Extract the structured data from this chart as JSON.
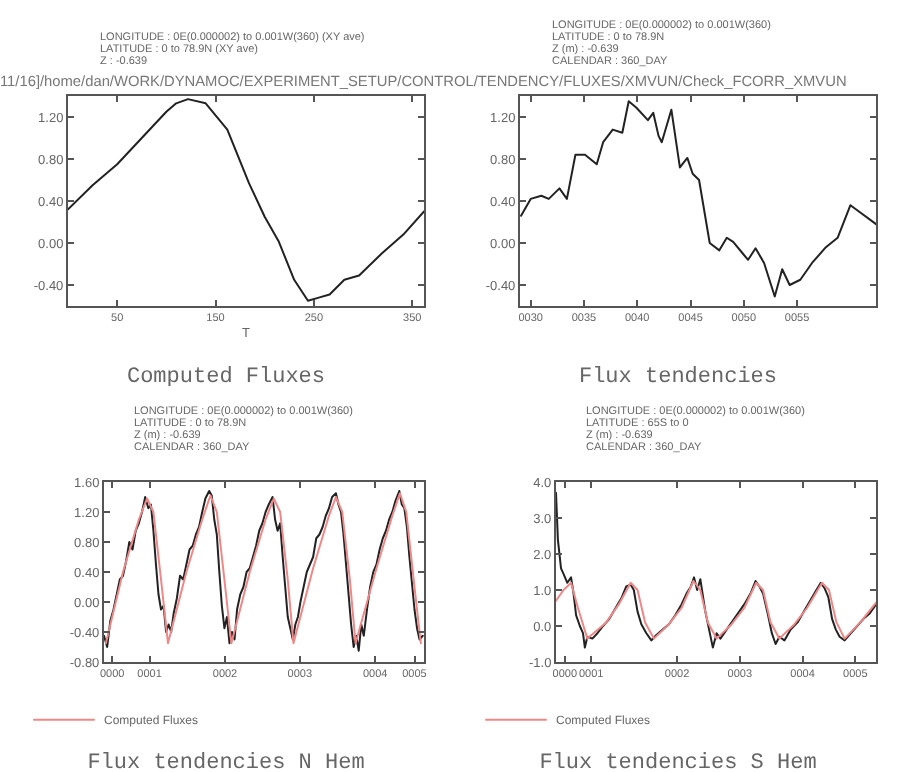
{
  "chart_data": [
    {
      "type": "line",
      "title": "Computed Fluxes",
      "subtitle": "11/16]/home/dan/WORK/DYNAMOC/EXPERIMENT_SETUP/CONTROL/TENDENCY/FLUXES/XMVUN/Check_FCORR_XMVUN",
      "xlabel": "T",
      "annotations": [
        "LONGITUDE : 0E(0.000002) to 0.001W(360) (XY ave)",
        "LATITUDE : 0 to 78.9N (XY ave)",
        "Z : -0.639"
      ],
      "xlim": [
        0,
        362
      ],
      "xticks": [
        50,
        150,
        250,
        350
      ],
      "ylim": [
        -0.6,
        1.4
      ],
      "yticks": [
        {
          "value": -0.4,
          "label": "-0.40"
        },
        {
          "value": 0,
          "label": "0.00"
        },
        {
          "value": 0.4,
          "label": "0.40"
        },
        {
          "value": 0.8,
          "label": "0.80"
        },
        {
          "value": 1.2,
          "label": "1.20"
        }
      ],
      "series": [
        {
          "color": "#222222",
          "x": [
            0,
            25,
            50,
            75,
            100,
            110,
            122,
            140,
            162,
            184,
            200,
            214,
            230,
            244,
            255,
            266,
            281,
            296,
            319,
            341,
            362
          ],
          "values": [
            0.32,
            0.55,
            0.75,
            1.0,
            1.25,
            1.33,
            1.37,
            1.33,
            1.08,
            0.57,
            0.25,
            0.02,
            -0.35,
            -0.55,
            -0.52,
            -0.49,
            -0.35,
            -0.31,
            -0.1,
            0.08,
            0.3
          ]
        }
      ]
    },
    {
      "type": "line",
      "title": "Flux tendencies",
      "annotations": [
        "LONGITUDE : 0E(0.000002) to 0.001W(360)",
        "LATITUDE : 0 to 78.9N",
        "Z (m) : -0.639",
        "CALENDAR : 360_DAY"
      ],
      "xlim": [
        29,
        62.4
      ],
      "xticks": [
        {
          "value": 30,
          "label": "0030"
        },
        {
          "value": 35,
          "label": "0035"
        },
        {
          "value": 40,
          "label": "0040"
        },
        {
          "value": 45,
          "label": "0045"
        },
        {
          "value": 50,
          "label": "0050"
        },
        {
          "value": 55,
          "label": "0055"
        }
      ],
      "ylim": [
        -0.6,
        1.4
      ],
      "yticks": [
        {
          "value": -0.4,
          "label": "-0.40"
        },
        {
          "value": 0,
          "label": "0.00"
        },
        {
          "value": 0.4,
          "label": "0.40"
        },
        {
          "value": 0.8,
          "label": "0.80"
        },
        {
          "value": 1.2,
          "label": "1.20"
        }
      ],
      "series": [
        {
          "color": "#222222",
          "x": [
            29.1,
            30,
            31,
            31.7,
            32.7,
            33.4,
            34.2,
            35.1,
            36.2,
            36.8,
            37.7,
            38.6,
            39.2,
            39.9,
            41,
            41.5,
            42,
            42.3,
            43.2,
            44,
            44.7,
            45.2,
            45.8,
            46.8,
            47.7,
            48.4,
            49,
            49.9,
            50.4,
            51.1,
            51.9,
            52.9,
            53.6,
            54.3,
            55.3,
            56.4,
            57.7,
            58.8,
            60,
            60.8,
            62.4
          ],
          "values": [
            0.26,
            0.42,
            0.45,
            0.42,
            0.52,
            0.42,
            0.84,
            0.84,
            0.75,
            0.96,
            1.08,
            1.05,
            1.35,
            1.29,
            1.17,
            1.24,
            1.02,
            0.96,
            1.27,
            0.72,
            0.81,
            0.66,
            0.6,
            0.0,
            -0.07,
            0.05,
            0.01,
            -0.1,
            -0.16,
            -0.05,
            -0.19,
            -0.51,
            -0.25,
            -0.4,
            -0.35,
            -0.19,
            -0.04,
            0.05,
            0.36,
            0.3,
            0.18
          ]
        }
      ]
    },
    {
      "type": "line",
      "title": "Flux tendencies N Hem",
      "legend": "bottom left",
      "annotations": [
        "LONGITUDE : 0E(0.000002) to 0.001W(360)",
        "LATITUDE : 0 to 78.9N",
        "Z (m) : -0.639",
        "CALENDAR : 360_DAY"
      ],
      "xlim": [
        0,
        5.05
      ],
      "xticks": [
        {
          "value": 0.13,
          "label": "0000"
        },
        {
          "value": 0.72,
          "label": "0001"
        },
        {
          "value": 1.91,
          "label": "0002"
        },
        {
          "value": 3.09,
          "label": "0003"
        },
        {
          "value": 4.28,
          "label": "0004"
        },
        {
          "value": 4.9,
          "label": "0005"
        }
      ],
      "ylim": [
        -0.8,
        1.6
      ],
      "yticks": [
        {
          "value": -0.8,
          "label": "-0.80"
        },
        {
          "value": -0.4,
          "label": "-0.40"
        },
        {
          "value": 0,
          "label": "0.00"
        },
        {
          "value": 0.4,
          "label": "0.40"
        },
        {
          "value": 0.8,
          "label": "0.80"
        },
        {
          "value": 1.2,
          "label": "1.20"
        },
        {
          "value": 1.6,
          "label": "1.60"
        }
      ],
      "series": [
        {
          "color": "#222222",
          "x": [
            0,
            0.05,
            0.1,
            0.15,
            0.2,
            0.25,
            0.3,
            0.35,
            0.4,
            0.45,
            0.5,
            0.55,
            0.6,
            0.65,
            0.7,
            0.74,
            0.78,
            0.82,
            0.86,
            0.9,
            0.94,
            0.98,
            1.02,
            1.06,
            1.1,
            1.15,
            1.2,
            1.25,
            1.3,
            1.35,
            1.4,
            1.45,
            1.5,
            1.55,
            1.6,
            1.66,
            1.7,
            1.74,
            1.78,
            1.82,
            1.86,
            1.9,
            1.94,
            1.98,
            2.02,
            2.06,
            2.1,
            2.15,
            2.2,
            2.25,
            2.3,
            2.35,
            2.4,
            2.45,
            2.5,
            2.55,
            2.6,
            2.66,
            2.7,
            2.74,
            2.78,
            2.82,
            2.86,
            2.9,
            2.94,
            2.98,
            3.02,
            3.06,
            3.1,
            3.15,
            3.2,
            3.25,
            3.3,
            3.35,
            3.4,
            3.45,
            3.5,
            3.55,
            3.6,
            3.66,
            3.7,
            3.74,
            3.78,
            3.82,
            3.86,
            3.9,
            3.94,
            3.98,
            4.02,
            4.06,
            4.1,
            4.15,
            4.2,
            4.25,
            4.3,
            4.35,
            4.4,
            4.45,
            4.5,
            4.55,
            4.6,
            4.66,
            4.7,
            4.74,
            4.78,
            4.82,
            4.86,
            4.9,
            4.94,
            4.98,
            5.03
          ],
          "values": [
            -0.45,
            -0.6,
            -0.25,
            -0.1,
            0.1,
            0.3,
            0.35,
            0.55,
            0.8,
            0.7,
            0.95,
            1.05,
            1.2,
            1.4,
            1.25,
            1.3,
            0.95,
            0.5,
            0.1,
            -0.1,
            -0.05,
            -0.4,
            -0.3,
            -0.4,
            -0.15,
            0.05,
            0.35,
            0.3,
            0.5,
            0.7,
            0.75,
            0.9,
            1.0,
            1.2,
            1.38,
            1.48,
            1.42,
            1.1,
            0.9,
            0.4,
            -0.05,
            -0.35,
            -0.2,
            -0.55,
            -0.4,
            -0.5,
            -0.1,
            0.1,
            0.2,
            0.4,
            0.45,
            0.6,
            0.75,
            0.95,
            1.05,
            1.2,
            1.3,
            1.4,
            1.1,
            0.95,
            1.05,
            0.6,
            0.2,
            -0.2,
            -0.35,
            -0.5,
            -0.3,
            -0.2,
            0.0,
            0.2,
            0.4,
            0.5,
            0.6,
            0.85,
            0.9,
            1.0,
            1.15,
            1.25,
            1.4,
            1.45,
            1.3,
            1.2,
            0.9,
            0.5,
            0.1,
            -0.3,
            -0.6,
            -0.45,
            -0.65,
            -0.3,
            -0.45,
            -0.1,
            0.2,
            0.4,
            0.5,
            0.7,
            0.85,
            0.95,
            1.1,
            1.2,
            1.35,
            1.48,
            1.3,
            1.25,
            1.0,
            0.6,
            0.25,
            -0.1,
            -0.35,
            -0.5,
            -0.45
          ]
        },
        {
          "name": "Computed Fluxes",
          "color": "#ee8888",
          "x": [
            0.03,
            0.3,
            0.55,
            0.68,
            0.78,
            0.9,
            1.01,
            1.3,
            1.55,
            1.68,
            1.78,
            1.9,
            2.01,
            2.3,
            2.55,
            2.68,
            2.78,
            2.9,
            2.99,
            3.3,
            3.55,
            3.66,
            3.76,
            3.88,
            3.97,
            4.3,
            4.55,
            4.67,
            4.77,
            4.9,
            5.0
          ],
          "values": [
            -0.55,
            0.4,
            1.1,
            1.38,
            1.2,
            0.3,
            -0.55,
            0.4,
            1.1,
            1.42,
            1.2,
            0.3,
            -0.55,
            0.4,
            1.1,
            1.38,
            1.2,
            0.3,
            -0.55,
            0.45,
            1.15,
            1.4,
            1.2,
            0.3,
            -0.55,
            0.45,
            1.15,
            1.45,
            1.2,
            0.2,
            -0.55
          ]
        }
      ]
    },
    {
      "type": "line",
      "title": "Flux tendencies S Hem",
      "legend": "bottom left",
      "annotations": [
        "LONGITUDE : 0E(0.000002) to 0.001W(360)",
        "LATITUDE : 65S to 0",
        "Z (m) : -0.639",
        "CALENDAR : 360_DAY"
      ],
      "xlim": [
        0,
        5.1
      ],
      "xticks": [
        {
          "value": 0.14,
          "label": "0000"
        },
        {
          "value": 0.56,
          "label": "0001"
        },
        {
          "value": 1.93,
          "label": "0002"
        },
        {
          "value": 2.93,
          "label": "0003"
        },
        {
          "value": 3.93,
          "label": "0004"
        },
        {
          "value": 4.77,
          "label": "0005"
        }
      ],
      "ylim": [
        -1,
        4
      ],
      "yticks": [
        {
          "value": -1,
          "label": "-1.0"
        },
        {
          "value": 0,
          "label": "0.0"
        },
        {
          "value": 1,
          "label": "1.0"
        },
        {
          "value": 2,
          "label": "2.0"
        },
        {
          "value": 3,
          "label": "3.0"
        },
        {
          "value": 4,
          "label": "4.0"
        }
      ],
      "series": [
        {
          "color": "#222222",
          "x": [
            0,
            0.03,
            0.08,
            0.12,
            0.18,
            0.24,
            0.28,
            0.32,
            0.38,
            0.43,
            0.46,
            0.5,
            0.58,
            0.66,
            0.75,
            0.85,
            0.95,
            1.05,
            1.12,
            1.19,
            1.24,
            1.3,
            1.36,
            1.44,
            1.52,
            1.6,
            1.7,
            1.8,
            1.9,
            2.0,
            2.08,
            2.15,
            2.2,
            2.25,
            2.3,
            2.38,
            2.44,
            2.5,
            2.56,
            2.62,
            2.7,
            2.8,
            2.9,
            3.0,
            3.1,
            3.18,
            3.24,
            3.3,
            3.38,
            3.44,
            3.5,
            3.56,
            3.64,
            3.74,
            3.85,
            3.95,
            4.05,
            4.15,
            4.22,
            4.28,
            4.34,
            4.4,
            4.46,
            4.52,
            4.6,
            4.7,
            4.8,
            4.9,
            5.0,
            5.1
          ],
          "values": [
            3.7,
            2.4,
            1.6,
            1.45,
            1.2,
            1.35,
            0.9,
            0.3,
            0.0,
            -0.2,
            -0.6,
            -0.3,
            -0.35,
            -0.2,
            0.0,
            0.2,
            0.5,
            0.8,
            1.1,
            1.15,
            1.0,
            0.4,
            0.05,
            -0.2,
            -0.4,
            -0.25,
            -0.1,
            0.05,
            0.3,
            0.6,
            0.9,
            1.1,
            1.35,
            1.0,
            1.3,
            0.4,
            -0.1,
            -0.6,
            -0.2,
            -0.35,
            -0.15,
            0.1,
            0.35,
            0.6,
            0.9,
            1.25,
            1.1,
            0.9,
            0.3,
            -0.2,
            -0.5,
            -0.3,
            -0.4,
            -0.1,
            0.1,
            0.4,
            0.7,
            1.0,
            1.2,
            1.05,
            0.8,
            0.2,
            -0.1,
            -0.3,
            -0.4,
            -0.2,
            0.0,
            0.2,
            0.35,
            0.6
          ]
        },
        {
          "name": "Computed Fluxes",
          "color": "#ee8888",
          "x": [
            0,
            0.12,
            0.24,
            0.35,
            0.5,
            0.8,
            1.0,
            1.19,
            1.3,
            1.42,
            1.56,
            1.8,
            2.0,
            2.19,
            2.3,
            2.42,
            2.56,
            2.8,
            3.0,
            3.19,
            3.3,
            3.42,
            3.56,
            3.8,
            4.0,
            4.24,
            4.35,
            4.47,
            4.6,
            4.85,
            5.1
          ],
          "values": [
            0.7,
            1.0,
            1.2,
            0.5,
            -0.35,
            0.1,
            0.6,
            1.2,
            1.0,
            0.1,
            -0.35,
            0.05,
            0.5,
            1.25,
            1.0,
            0.1,
            -0.35,
            0.05,
            0.5,
            1.2,
            1.0,
            0.1,
            -0.35,
            0.05,
            0.5,
            1.2,
            1.0,
            0.1,
            -0.35,
            0.1,
            0.65
          ]
        }
      ]
    }
  ]
}
